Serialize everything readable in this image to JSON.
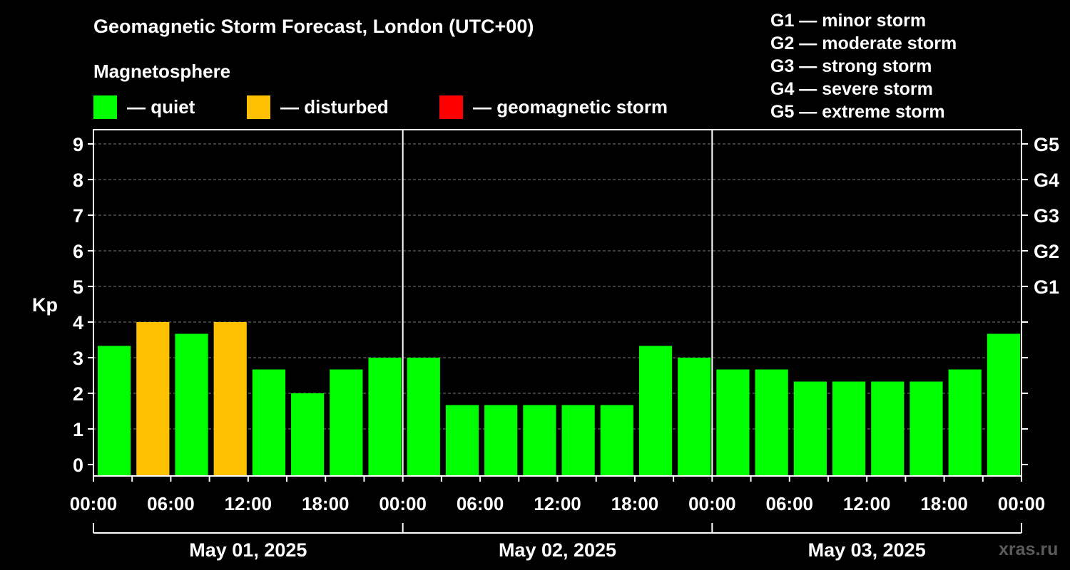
{
  "title": "Geomagnetic Storm Forecast, London (UTC+00)",
  "legend": {
    "heading": "Magnetosphere",
    "items": [
      {
        "label": "— quiet",
        "color": "#00ff00"
      },
      {
        "label": "— disturbed",
        "color": "#ffc000"
      },
      {
        "label": "— geomagnetic storm",
        "color": "#ff0000"
      }
    ]
  },
  "g_scale": [
    "G1 — minor storm",
    "G2 — moderate storm",
    "G3 — strong storm",
    "G4 — severe storm",
    "G5 — extreme storm"
  ],
  "watermark": "xras.ru",
  "chart_data": {
    "type": "bar",
    "ylabel": "Kp",
    "ylim": [
      0,
      9
    ],
    "yticks": [
      "0",
      "1",
      "2",
      "3",
      "4",
      "5",
      "6",
      "7",
      "8",
      "9"
    ],
    "right_axis_labels": [
      {
        "kp": 5,
        "label": "G1"
      },
      {
        "kp": 6,
        "label": "G2"
      },
      {
        "kp": 7,
        "label": "G3"
      },
      {
        "kp": 8,
        "label": "G4"
      },
      {
        "kp": 9,
        "label": "G5"
      }
    ],
    "x_tick_labels": [
      "00:00",
      "06:00",
      "12:00",
      "18:00",
      "00:00",
      "06:00",
      "12:00",
      "18:00",
      "00:00",
      "06:00",
      "12:00",
      "18:00",
      "00:00"
    ],
    "days": [
      "May 01, 2025",
      "May 02, 2025",
      "May 03, 2025"
    ],
    "grid": "horizontal dashed",
    "bar_interval_hours": 3,
    "values": [
      3.33,
      4.0,
      3.67,
      4.0,
      2.67,
      2.0,
      2.67,
      3.0,
      3.0,
      1.67,
      1.67,
      1.67,
      1.67,
      1.67,
      3.33,
      3.0,
      2.67,
      2.67,
      2.33,
      2.33,
      2.33,
      2.33,
      2.67,
      3.67
    ],
    "status": [
      "quiet",
      "disturbed",
      "quiet",
      "disturbed",
      "quiet",
      "quiet",
      "quiet",
      "quiet",
      "quiet",
      "quiet",
      "quiet",
      "quiet",
      "quiet",
      "quiet",
      "quiet",
      "quiet",
      "quiet",
      "quiet",
      "quiet",
      "quiet",
      "quiet",
      "quiet",
      "quiet",
      "quiet"
    ],
    "status_colors": {
      "quiet": "#00ff00",
      "disturbed": "#ffc000",
      "storm": "#ff0000"
    }
  }
}
